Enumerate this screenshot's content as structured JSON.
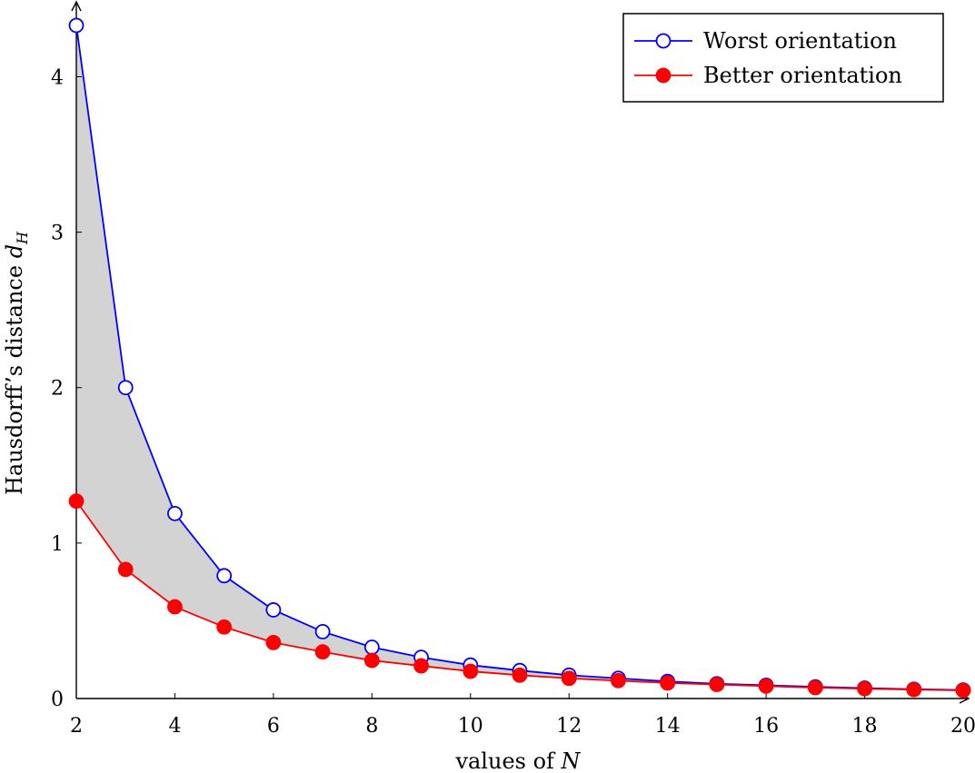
{
  "chart_data": {
    "type": "line",
    "title": "",
    "xlabel": "values of N",
    "xlabel_parts": {
      "text": "values of ",
      "variable": "N"
    },
    "ylabel": "Hausdorff's distance d_H",
    "ylabel_parts": {
      "text": "Hausdorff’s distance ",
      "variable": "d",
      "subscript": "H"
    },
    "xlim": [
      2,
      20
    ],
    "ylim": [
      0,
      4.4
    ],
    "xticks": [
      "2",
      "4",
      "6",
      "8",
      "10",
      "12",
      "14",
      "16",
      "18",
      "20"
    ],
    "yticks": [
      "0",
      "1",
      "2",
      "3",
      "4"
    ],
    "grid": false,
    "legend_position": "top-right",
    "fill_between_series": true,
    "colors": {
      "fill": "#d3d3d3",
      "axis": "#000000"
    },
    "x": [
      2,
      3,
      4,
      5,
      6,
      7,
      8,
      9,
      10,
      11,
      12,
      13,
      14,
      15,
      16,
      17,
      18,
      19,
      20
    ],
    "series": [
      {
        "name": "Worst orientation",
        "color": "#0000ff",
        "marker": "open-circle",
        "values": [
          4.33,
          2.0,
          1.19,
          0.79,
          0.57,
          0.43,
          0.33,
          0.265,
          0.215,
          0.18,
          0.15,
          0.13,
          0.11,
          0.095,
          0.085,
          0.075,
          0.067,
          0.06,
          0.055
        ]
      },
      {
        "name": "Better orientation",
        "color": "#ff0000",
        "marker": "filled-circle",
        "values": [
          1.27,
          0.83,
          0.59,
          0.46,
          0.36,
          0.3,
          0.245,
          0.21,
          0.175,
          0.15,
          0.13,
          0.115,
          0.1,
          0.09,
          0.08,
          0.07,
          0.063,
          0.057,
          0.052
        ]
      }
    ]
  }
}
